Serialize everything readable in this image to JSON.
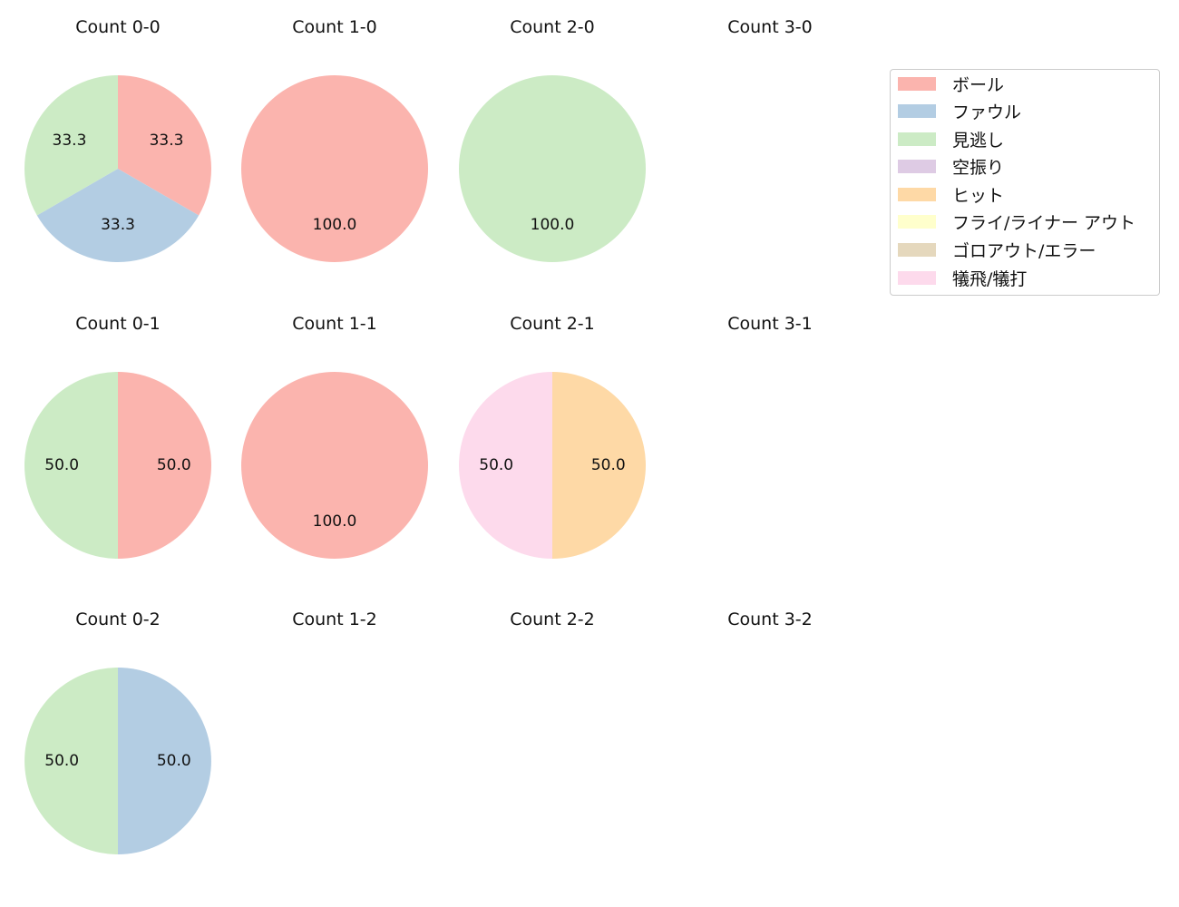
{
  "chart_data": [
    {
      "type": "pie",
      "title": "Count 0-0",
      "labels": [
        "ボール",
        "ファウル",
        "見逃し"
      ],
      "values": [
        33.3,
        33.3,
        33.3
      ]
    },
    {
      "type": "pie",
      "title": "Count 1-0",
      "labels": [
        "ボール"
      ],
      "values": [
        100.0
      ]
    },
    {
      "type": "pie",
      "title": "Count 2-0",
      "labels": [
        "見逃し"
      ],
      "values": [
        100.0
      ]
    },
    {
      "type": "pie",
      "title": "Count 3-0",
      "labels": [],
      "values": []
    },
    {
      "type": "pie",
      "title": "Count 0-1",
      "labels": [
        "ボール",
        "見逃し"
      ],
      "values": [
        50.0,
        50.0
      ]
    },
    {
      "type": "pie",
      "title": "Count 1-1",
      "labels": [
        "ボール"
      ],
      "values": [
        100.0
      ]
    },
    {
      "type": "pie",
      "title": "Count 2-1",
      "labels": [
        "ヒット",
        "犠飛/犠打"
      ],
      "values": [
        50.0,
        50.0
      ]
    },
    {
      "type": "pie",
      "title": "Count 3-1",
      "labels": [],
      "values": []
    },
    {
      "type": "pie",
      "title": "Count 0-2",
      "labels": [
        "ファウル",
        "見逃し"
      ],
      "values": [
        50.0,
        50.0
      ]
    },
    {
      "type": "pie",
      "title": "Count 1-2",
      "labels": [],
      "values": []
    },
    {
      "type": "pie",
      "title": "Count 2-2",
      "labels": [],
      "values": []
    },
    {
      "type": "pie",
      "title": "Count 3-2",
      "labels": [],
      "values": []
    }
  ],
  "legend": {
    "placement": "right",
    "items": [
      {
        "label": "ボール",
        "color": "#fbb4ae"
      },
      {
        "label": "ファウル",
        "color": "#b3cde3"
      },
      {
        "label": "見逃し",
        "color": "#ccebc5"
      },
      {
        "label": "空振り",
        "color": "#decbe4"
      },
      {
        "label": "ヒット",
        "color": "#fed9a6"
      },
      {
        "label": "フライ/ライナー アウト",
        "color": "#ffffcc"
      },
      {
        "label": "ゴロアウト/エラー",
        "color": "#e5d8bd"
      },
      {
        "label": "犠飛/犠打",
        "color": "#fddaec"
      }
    ]
  }
}
